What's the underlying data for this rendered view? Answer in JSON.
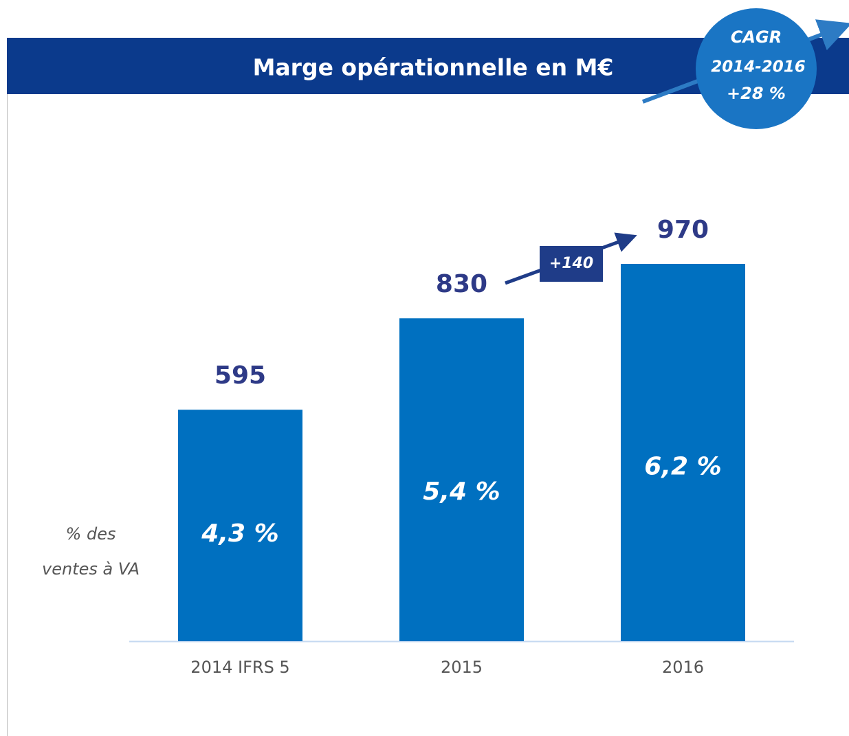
{
  "chart_data": {
    "type": "bar",
    "title": "Marge opérationnelle en M€",
    "categories": [
      "2014 IFRS 5",
      "2015",
      "2016"
    ],
    "values": [
      595,
      830,
      970
    ],
    "color": "#0070c0",
    "share_labels": [
      "4,3 %",
      "5,4 %",
      "6,2 %"
    ],
    "share_caption": [
      "% des",
      "ventes à VA"
    ],
    "delta_label": "+140",
    "cagr": [
      "CAGR",
      "2014-2016",
      "+28 %"
    ]
  }
}
